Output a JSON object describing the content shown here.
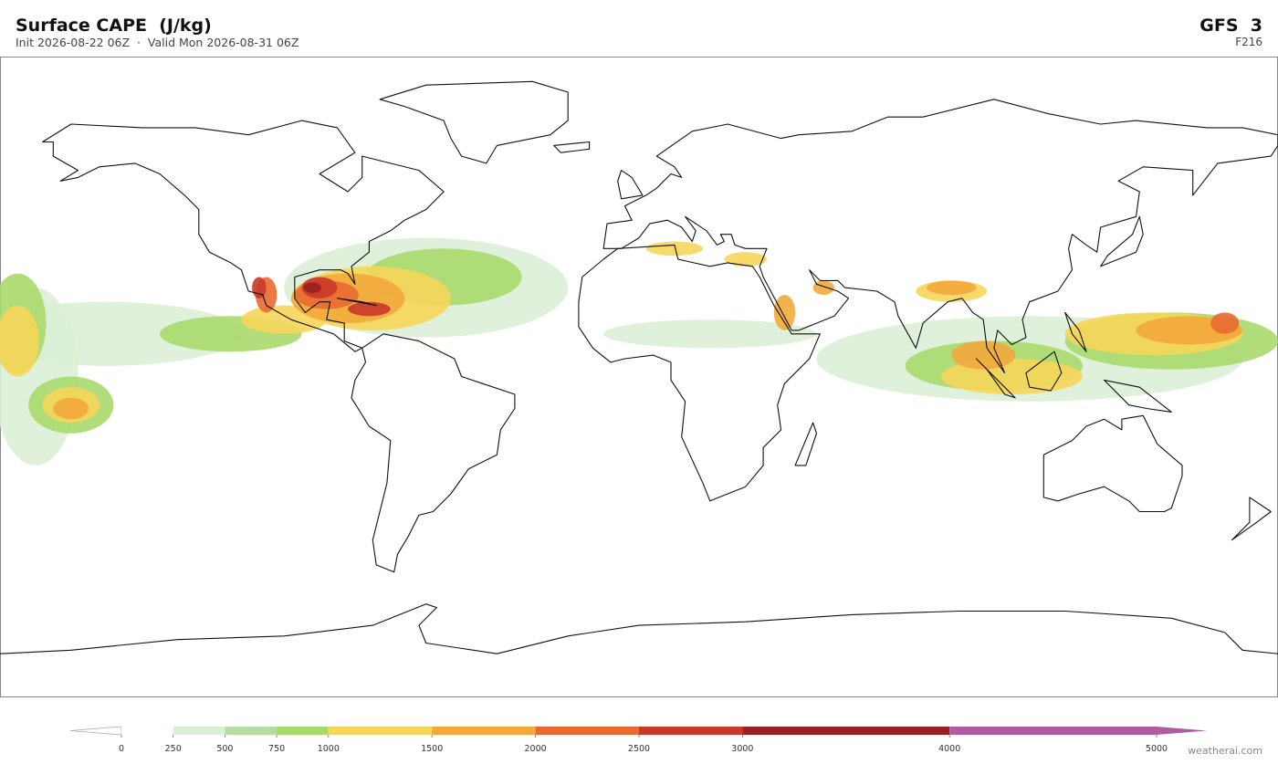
{
  "header": {
    "title": "Surface CAPE  (J/kg)",
    "subtitle": "Init 2026-08-22 06Z  ·  Valid Mon 2026-08-31 06Z",
    "model": "GFS  3",
    "forecast_hour": "F216"
  },
  "colorbar": {
    "levels": [
      0,
      250,
      500,
      750,
      1000,
      1500,
      2000,
      2500,
      3000,
      4000,
      5000
    ],
    "colors": [
      "#ffffff",
      "#dcefd6",
      "#b6dca6",
      "#a8d96c",
      "#f6d65a",
      "#f3a83c",
      "#e86a30",
      "#c9392a",
      "#9a1f20",
      "#b05ca2"
    ],
    "extend": "both"
  },
  "footer": {
    "watermark": "weatherai.com"
  }
}
